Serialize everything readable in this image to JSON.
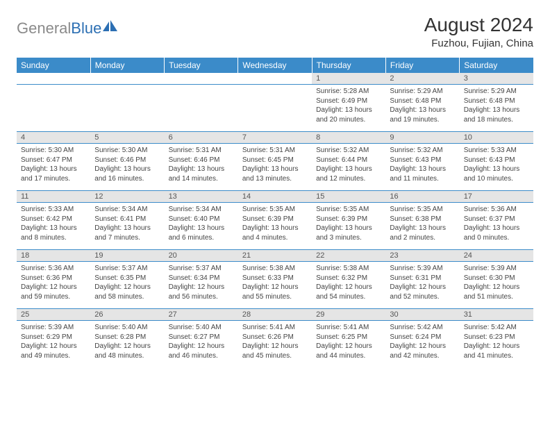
{
  "logo": {
    "text_a": "General",
    "text_b": "Blue"
  },
  "title": "August 2024",
  "location": "Fuzhou, Fujian, China",
  "colors": {
    "header_bg": "#3b8bc9",
    "header_fg": "#ffffff",
    "daynum_bg": "#e5e5e5",
    "border": "#3b8bc9",
    "logo_gray": "#8a8a8a",
    "logo_blue": "#2c6fb3"
  },
  "weekdays": [
    "Sunday",
    "Monday",
    "Tuesday",
    "Wednesday",
    "Thursday",
    "Friday",
    "Saturday"
  ],
  "weeks": [
    {
      "nums": [
        "",
        "",
        "",
        "",
        "1",
        "2",
        "3"
      ],
      "cells": [
        "",
        "",
        "",
        "",
        "Sunrise: 5:28 AM\nSunset: 6:49 PM\nDaylight: 13 hours and 20 minutes.",
        "Sunrise: 5:29 AM\nSunset: 6:48 PM\nDaylight: 13 hours and 19 minutes.",
        "Sunrise: 5:29 AM\nSunset: 6:48 PM\nDaylight: 13 hours and 18 minutes."
      ]
    },
    {
      "nums": [
        "4",
        "5",
        "6",
        "7",
        "8",
        "9",
        "10"
      ],
      "cells": [
        "Sunrise: 5:30 AM\nSunset: 6:47 PM\nDaylight: 13 hours and 17 minutes.",
        "Sunrise: 5:30 AM\nSunset: 6:46 PM\nDaylight: 13 hours and 16 minutes.",
        "Sunrise: 5:31 AM\nSunset: 6:46 PM\nDaylight: 13 hours and 14 minutes.",
        "Sunrise: 5:31 AM\nSunset: 6:45 PM\nDaylight: 13 hours and 13 minutes.",
        "Sunrise: 5:32 AM\nSunset: 6:44 PM\nDaylight: 13 hours and 12 minutes.",
        "Sunrise: 5:32 AM\nSunset: 6:43 PM\nDaylight: 13 hours and 11 minutes.",
        "Sunrise: 5:33 AM\nSunset: 6:43 PM\nDaylight: 13 hours and 10 minutes."
      ]
    },
    {
      "nums": [
        "11",
        "12",
        "13",
        "14",
        "15",
        "16",
        "17"
      ],
      "cells": [
        "Sunrise: 5:33 AM\nSunset: 6:42 PM\nDaylight: 13 hours and 8 minutes.",
        "Sunrise: 5:34 AM\nSunset: 6:41 PM\nDaylight: 13 hours and 7 minutes.",
        "Sunrise: 5:34 AM\nSunset: 6:40 PM\nDaylight: 13 hours and 6 minutes.",
        "Sunrise: 5:35 AM\nSunset: 6:39 PM\nDaylight: 13 hours and 4 minutes.",
        "Sunrise: 5:35 AM\nSunset: 6:39 PM\nDaylight: 13 hours and 3 minutes.",
        "Sunrise: 5:35 AM\nSunset: 6:38 PM\nDaylight: 13 hours and 2 minutes.",
        "Sunrise: 5:36 AM\nSunset: 6:37 PM\nDaylight: 13 hours and 0 minutes."
      ]
    },
    {
      "nums": [
        "18",
        "19",
        "20",
        "21",
        "22",
        "23",
        "24"
      ],
      "cells": [
        "Sunrise: 5:36 AM\nSunset: 6:36 PM\nDaylight: 12 hours and 59 minutes.",
        "Sunrise: 5:37 AM\nSunset: 6:35 PM\nDaylight: 12 hours and 58 minutes.",
        "Sunrise: 5:37 AM\nSunset: 6:34 PM\nDaylight: 12 hours and 56 minutes.",
        "Sunrise: 5:38 AM\nSunset: 6:33 PM\nDaylight: 12 hours and 55 minutes.",
        "Sunrise: 5:38 AM\nSunset: 6:32 PM\nDaylight: 12 hours and 54 minutes.",
        "Sunrise: 5:39 AM\nSunset: 6:31 PM\nDaylight: 12 hours and 52 minutes.",
        "Sunrise: 5:39 AM\nSunset: 6:30 PM\nDaylight: 12 hours and 51 minutes."
      ]
    },
    {
      "nums": [
        "25",
        "26",
        "27",
        "28",
        "29",
        "30",
        "31"
      ],
      "cells": [
        "Sunrise: 5:39 AM\nSunset: 6:29 PM\nDaylight: 12 hours and 49 minutes.",
        "Sunrise: 5:40 AM\nSunset: 6:28 PM\nDaylight: 12 hours and 48 minutes.",
        "Sunrise: 5:40 AM\nSunset: 6:27 PM\nDaylight: 12 hours and 46 minutes.",
        "Sunrise: 5:41 AM\nSunset: 6:26 PM\nDaylight: 12 hours and 45 minutes.",
        "Sunrise: 5:41 AM\nSunset: 6:25 PM\nDaylight: 12 hours and 44 minutes.",
        "Sunrise: 5:42 AM\nSunset: 6:24 PM\nDaylight: 12 hours and 42 minutes.",
        "Sunrise: 5:42 AM\nSunset: 6:23 PM\nDaylight: 12 hours and 41 minutes."
      ]
    }
  ]
}
